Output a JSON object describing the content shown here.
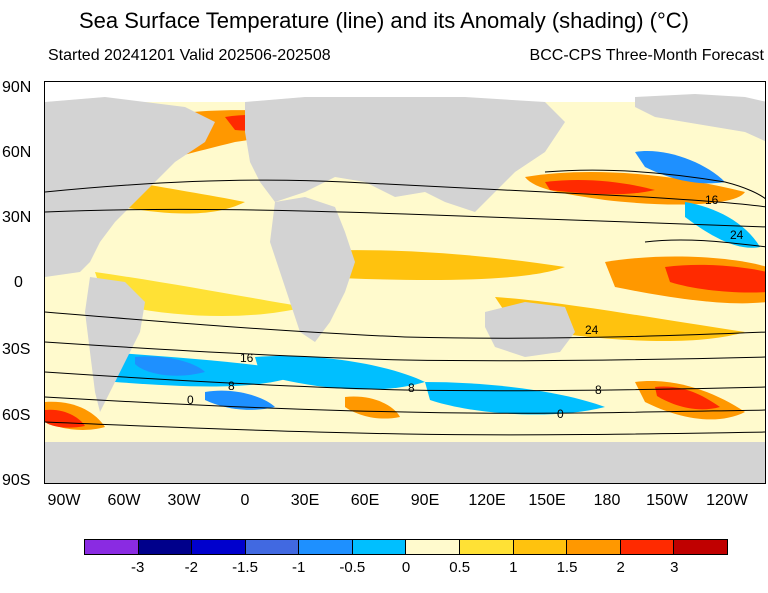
{
  "title": "Sea Surface Temperature (line) and its Anomaly (shading) (°C)",
  "subtitle_left": "Started 20241201  Valid 202506-202508",
  "subtitle_right": "BCC-CPS Three-Month Forecast",
  "lat_labels": [
    "90N",
    "60N",
    "30N",
    "0",
    "30S",
    "60S",
    "90S"
  ],
  "lon_labels": [
    "90W",
    "60W",
    "30W",
    "0",
    "30E",
    "60E",
    "90E",
    "120E",
    "150E",
    "180",
    "150W",
    "120W"
  ],
  "contour_labels": [
    "16",
    "24",
    "24",
    "16",
    "8",
    "8",
    "8",
    "0",
    "0"
  ],
  "colorbar": {
    "colors": [
      "#8a2be2",
      "#00008b",
      "#0000cd",
      "#4169e1",
      "#1e90ff",
      "#00bfff",
      "#fffacd",
      "#ffe135",
      "#ffc20e",
      "#ff9800",
      "#ff2a00",
      "#c00000"
    ],
    "labels": [
      "-3",
      "-2",
      "-1.5",
      "-1",
      "-0.5",
      "0",
      "0.5",
      "1",
      "1.5",
      "2",
      "3"
    ]
  },
  "colors": {
    "land": "#d3d3d3",
    "ice": "#ffffff",
    "contour": "#000000"
  }
}
